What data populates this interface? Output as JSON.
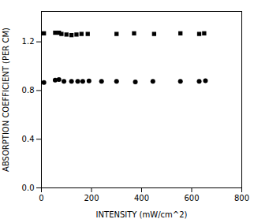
{
  "chart_data": {
    "type": "scatter",
    "xlabel": "INTENSITY (mW/cm^2)",
    "ylabel": "ABSORPTION COEFFICIENT (PER CM)",
    "series": [
      {
        "marker": "square",
        "color": "#000000",
        "x": [
          10,
          55,
          70,
          80,
          100,
          120,
          140,
          160,
          185,
          300,
          370,
          450,
          555,
          630,
          650
        ],
        "values": [
          1.27,
          1.275,
          1.275,
          1.265,
          1.26,
          1.255,
          1.26,
          1.265,
          1.265,
          1.265,
          1.27,
          1.265,
          1.27,
          1.265,
          1.27
        ]
      },
      {
        "marker": "circle",
        "color": "#000000",
        "x": [
          10,
          55,
          70,
          90,
          120,
          145,
          165,
          190,
          240,
          300,
          375,
          445,
          555,
          630,
          655
        ],
        "values": [
          0.865,
          0.885,
          0.89,
          0.875,
          0.875,
          0.875,
          0.875,
          0.878,
          0.875,
          0.875,
          0.87,
          0.875,
          0.875,
          0.875,
          0.88
        ]
      }
    ],
    "xlim": [
      0,
      800
    ],
    "ylim": [
      0.0,
      1.45
    ],
    "xticks": [
      0,
      200,
      400,
      600,
      800
    ],
    "yticks": [
      {
        "value": 0,
        "label": "0.0"
      },
      0.4,
      0.8,
      1.2
    ]
  }
}
